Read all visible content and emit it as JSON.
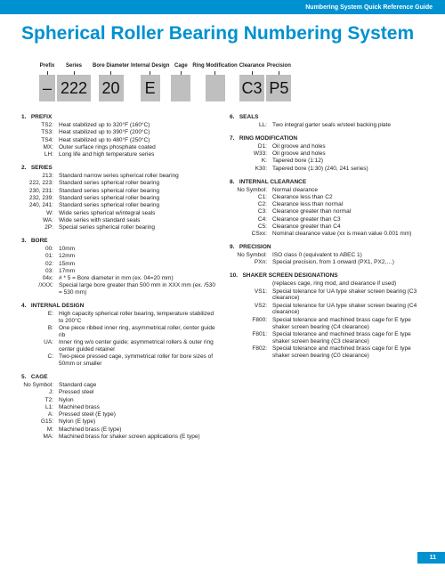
{
  "header": "Numbering System Quick Reference Guide",
  "title": "Spherical Roller Bearing Numbering System",
  "pagenum": "11",
  "diagram": {
    "labels": [
      "Prefix",
      "Series",
      "Bore\nDiameter",
      "Internal\nDesign",
      "Cage",
      "Ring\nModification",
      "Clearance",
      "Precision"
    ],
    "boxes": [
      "–",
      "222",
      "20",
      "E",
      "",
      "",
      "C3",
      "P5"
    ]
  },
  "left": [
    {
      "n": "1.",
      "t": "PREFIX",
      "rows": [
        [
          "TS2:",
          "Heat stabilized up to 320°F (160°C)"
        ],
        [
          "TS3:",
          "Heat stabilized up to 390°F (200°C)"
        ],
        [
          "TS4:",
          "Heat stabilized up to 480°F (250°C)"
        ],
        [
          "MX:",
          "Outer surface rings phosphate coated"
        ],
        [
          "LH:",
          "Long life and high temperature series"
        ]
      ]
    },
    {
      "n": "2.",
      "t": "SERIES",
      "rows": [
        [
          "213:",
          "Standard narrow series spherical roller bearing"
        ],
        [
          "222, 223:",
          "Standard series spherical roller bearing"
        ],
        [
          "230, 231:",
          "Standard series spherical roller bearing"
        ],
        [
          "232, 239:",
          "Standard series spherical roller bearing"
        ],
        [
          "240, 241:",
          "Standard series spherical roller bearing"
        ],
        [
          "W:",
          "Wide series spherical w/integral seals"
        ],
        [
          "WA:",
          "Wide series with standard seals"
        ],
        [
          "2P:",
          "Special series spherical roller bearing"
        ]
      ]
    },
    {
      "n": "3.",
      "t": "BORE",
      "rows": [
        [
          "00:",
          "10mm"
        ],
        [
          "01:",
          "12mm"
        ],
        [
          "02:",
          "15mm"
        ],
        [
          "03:",
          "17mm"
        ],
        [
          "04x:",
          "# * 5 = Bore diameter in mm (ex. 04=20 mm)"
        ],
        [
          "/XXX:",
          "Special large bore greater than 500 mm in XXX mm (ex. /530 = 530 mm)"
        ]
      ]
    },
    {
      "n": "4.",
      "t": "INTERNAL DESIGN",
      "rows": [
        [
          "E:",
          "High capacity spherical roller bearing, temperature stabilized to 200°C"
        ],
        [
          "B:",
          "One piece ribbed inner ring, asymmetrical roller, center guide rib"
        ],
        [
          "UA:",
          "Inner ring w/o center guide; asymmetrical rollers & outer ring center guided retainer"
        ],
        [
          "C:",
          "Two-piece pressed cage, symmetrical roller for bore sizes of 50mm or smaller"
        ]
      ]
    },
    {
      "n": "5.",
      "t": "CAGE",
      "rows": [
        [
          "No Symbol:",
          "Standard cage"
        ],
        [
          "J:",
          "Pressed steel"
        ],
        [
          "T2:",
          "Nylon"
        ],
        [
          "L1:",
          "Machined brass"
        ],
        [
          "A:",
          "Pressed steel (E type)"
        ],
        [
          "G15:",
          "Nylon (E type)"
        ],
        [
          "M:",
          "Machined brass (E type)"
        ],
        [
          "MA:",
          "Machined brass for shaker screen applications (E type)"
        ]
      ]
    }
  ],
  "right": [
    {
      "n": "6.",
      "t": "SEALS",
      "rows": [
        [
          "LL:",
          "Two integral garter seals w/steel backing plate"
        ]
      ]
    },
    {
      "n": "7.",
      "t": "RING MODIFICATION",
      "rows": [
        [
          "D1:",
          "Oil groove and holes"
        ],
        [
          "W33:",
          "Oil groove and holes"
        ],
        [
          "K:",
          "Tapered bore (1:12)"
        ],
        [
          "K30:",
          "Tapered bore (1:30) (240, 241 series)"
        ]
      ]
    },
    {
      "n": "8.",
      "t": "INTERNAL CLEARANCE",
      "rows": [
        [
          "No Symbol:",
          "Normal clearance"
        ],
        [
          "C1:",
          "Clearance less than C2"
        ],
        [
          "C2:",
          "Clearance less than normal"
        ],
        [
          "C3:",
          "Clearance greater than normal"
        ],
        [
          "C4:",
          "Clearance greater than C3"
        ],
        [
          "C5:",
          "Clearance greater than C4"
        ],
        [
          "CSxx:",
          "Nominal clearance value (xx is mean value 0.001 mm)"
        ]
      ]
    },
    {
      "n": "9.",
      "t": "PRECISION",
      "rows": [
        [
          "No Symbol:",
          "ISO class 0 (equivalent to ABEC 1)"
        ],
        [
          "PXn:",
          "Special precision, from 1 onward (PX1, PX2,…)"
        ]
      ]
    },
    {
      "n": "10.",
      "t": "SHAKER SCREEN DESIGNATIONS",
      "note": "(replaces cage, ring mod, and clearance if used)",
      "rows": [
        [
          "VS1:",
          "Special tolerance for UA type shaker screen bearing (C3 clearance)"
        ],
        [
          "VS2:",
          "Special tolerance for UA type shaker screen bearing (C4 clearance)"
        ],
        [
          "F800:",
          "Special tolerance and machined brass cage for E type shaker screen bearing (C4 clearance)"
        ],
        [
          "F801:",
          "Special tolerance and machined brass cage for E type shaker screen bearing (C3 clearance)"
        ],
        [
          "F802:",
          "Special tolerance and machined brass cage for E type shaker screen bearing (C0 clearance)"
        ]
      ]
    }
  ]
}
